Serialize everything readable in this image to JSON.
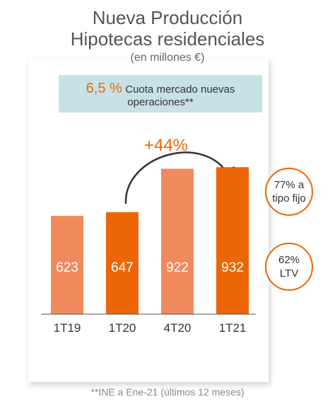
{
  "title": {
    "line1": "Nueva Producción",
    "line2": "Hipotecas residenciales",
    "unit": "(en millones €)"
  },
  "share_box": {
    "value": "6,5 %",
    "text_line1": "Cuota mercado nuevas",
    "text_line2": "operaciones**"
  },
  "growth_label": "+44%",
  "circles": {
    "fixed_rate_line1": "77% a",
    "fixed_rate_line2": "tipo fijo",
    "ltv_line1": "62%",
    "ltv_line2": "LTV"
  },
  "footnote": "**INE a Ene-21 (últimos 12 meses)",
  "colors": {
    "light_orange": "#f08a5d",
    "dark_orange": "#ec6608",
    "box_blue": "#c7e2e6"
  },
  "chart_data": {
    "type": "bar",
    "categories": [
      "1T19",
      "1T20",
      "4T20",
      "1T21"
    ],
    "values": [
      623,
      647,
      922,
      932
    ],
    "value_labels": [
      "623",
      "647",
      "922",
      "932"
    ],
    "bar_colors": [
      "#f08a5d",
      "#ec6608",
      "#f08a5d",
      "#ec6608"
    ],
    "title": "",
    "xlabel": "",
    "ylabel": "",
    "ylim": [
      0,
      1400
    ],
    "grid": false,
    "legend": "none"
  }
}
